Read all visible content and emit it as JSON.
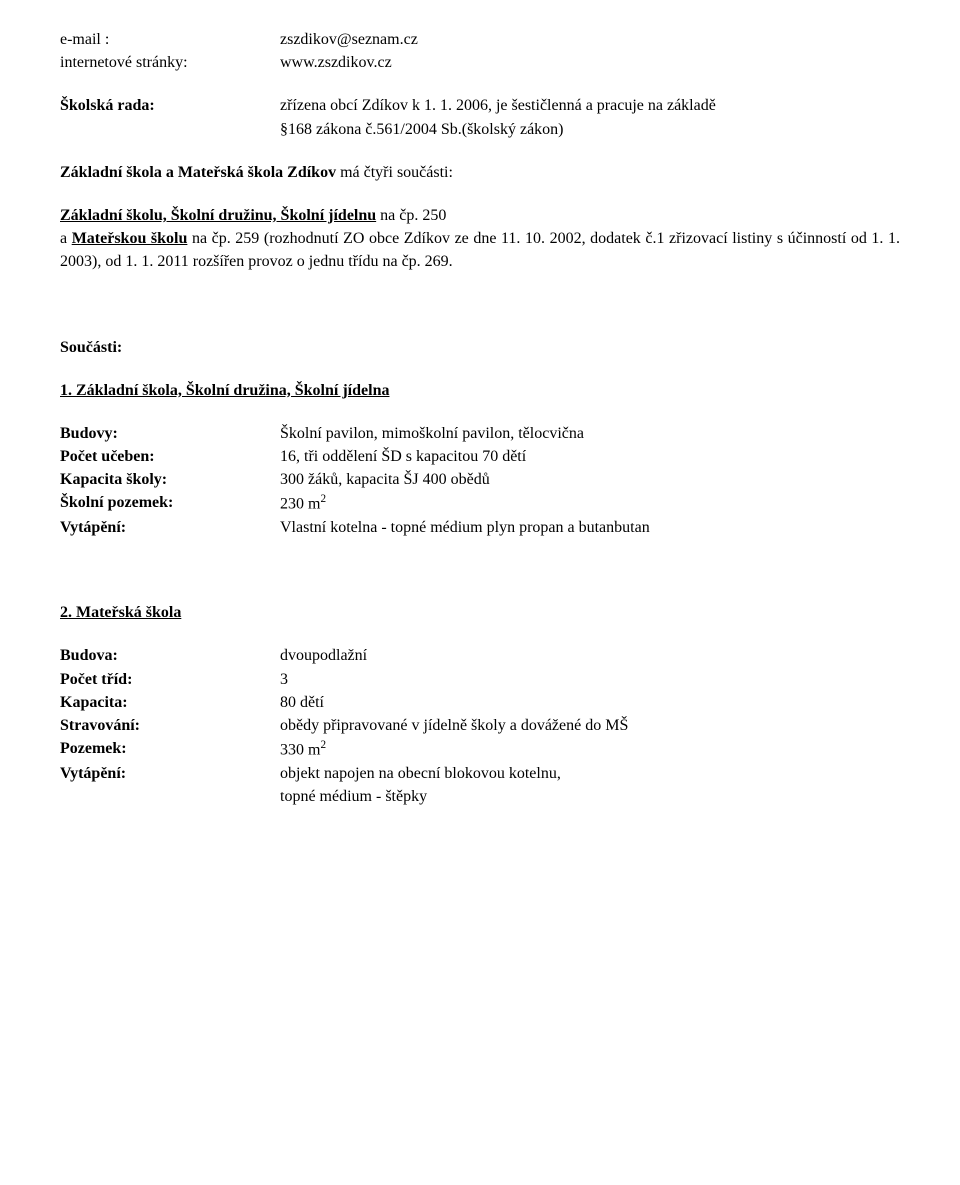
{
  "contact": {
    "email_label": "e-mail :",
    "email_value": "zszdikov@seznam.cz",
    "web_label": "internetové stránky:",
    "web_value": "www.zszdikov.cz"
  },
  "skolska_rada": {
    "label": "Školská rada:",
    "line1": "zřízena obcí Zdíkov k 1. 1. 2006, je šestičlenná a pracuje na základě",
    "line2": "§168 zákona č.561/2004 Sb.(školský zákon)"
  },
  "casti_intro": {
    "line1_a": "Základní škola a Mateřská škola Zdíkov",
    "line1_b": " má čtyři součásti:"
  },
  "casti_body": {
    "p1_a": "Základní školu, Školní družinu, Školní jídelnu",
    "p1_b": " na čp. 250",
    "p2_a": "a ",
    "p2_b": "Mateřskou školu",
    "p2_c": " na čp. 259 (rozhodnutí ZO obce Zdíkov ze dne 11. 10. 2002, dodatek č.1 zřizovací listiny s účinností od 1. 1. 2003), od 1. 1. 2011 rozšířen provoz o jednu třídu na čp. 269."
  },
  "soucasti_heading": "Součásti:",
  "s1": {
    "heading": "1. Základní škola, Školní družina, Školní jídelna",
    "rows": {
      "budovy_l": "Budovy:",
      "budovy_v": "Školní pavilon, mimoškolní pavilon, tělocvična",
      "uceben_l": "Počet učeben:",
      "uceben_v": "16, tři oddělení ŠD s kapacitou 70 dětí",
      "kapacita_l": "Kapacita školy:",
      "kapacita_v": "300 žáků, kapacita ŠJ 400 obědů",
      "pozemek_l": "Školní pozemek:",
      "pozemek_v": "230 m",
      "pozemek_unit_exp": "2",
      "vytapeni_l": "Vytápění:",
      "vytapeni_v": "Vlastní kotelna - topné médium plyn propan a butanbutan"
    }
  },
  "s2": {
    "heading": "2. Mateřská škola",
    "rows": {
      "budova_l": "Budova:",
      "budova_v": "dvoupodlažní",
      "trid_l": "Počet tříd:",
      "trid_v": "3",
      "kapacita_l": "Kapacita:",
      "kapacita_v": "80 dětí",
      "strav_l": "Stravování:",
      "strav_v": "obědy připravované v  jídelně školy a dovážené do MŠ",
      "pozemek_l": "Pozemek:",
      "pozemek_v": "330 m",
      "pozemek_unit_exp": "2",
      "vytapeni_l": "Vytápění:",
      "vytapeni_v1": "objekt napojen na obecní blokovou kotelnu,",
      "vytapeni_v2": "topné médium - štěpky"
    }
  }
}
